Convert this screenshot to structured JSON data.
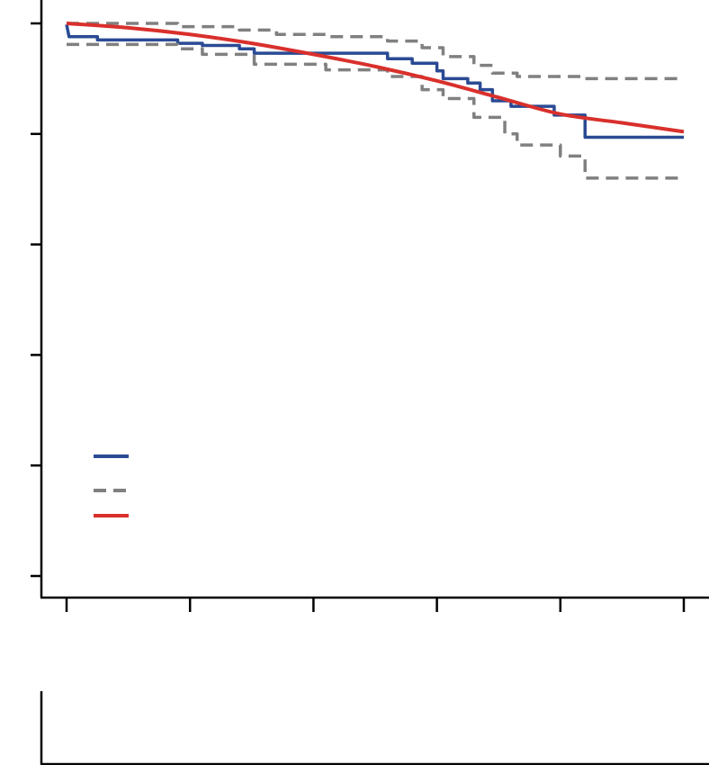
{
  "chart_data": [
    {
      "type": "line",
      "title": "",
      "xlabel": "",
      "ylabel": "",
      "xlim": [
        0,
        5
      ],
      "ylim": [
        0,
        5
      ],
      "x_ticks": [
        0,
        1,
        2,
        3,
        4,
        5
      ],
      "y_ticks": [
        0,
        1,
        2,
        3,
        4,
        5
      ],
      "grid": false,
      "legend": {
        "position": "lower-left",
        "entries": [
          {
            "series": 0,
            "label": ""
          },
          {
            "series": 1,
            "label": ""
          },
          {
            "series": 3,
            "label": ""
          }
        ]
      },
      "series": [
        {
          "style": "step",
          "color": "#2a4a94",
          "dash": "solid",
          "points": [
            [
              0.0,
              4.99
            ],
            [
              0.02,
              4.88
            ],
            [
              0.25,
              4.88
            ],
            [
              0.25,
              4.85
            ],
            [
              0.9,
              4.85
            ],
            [
              0.9,
              4.82
            ],
            [
              1.1,
              4.82
            ],
            [
              1.1,
              4.8
            ],
            [
              1.4,
              4.8
            ],
            [
              1.4,
              4.77
            ],
            [
              1.52,
              4.77
            ],
            [
              1.52,
              4.73
            ],
            [
              2.6,
              4.73
            ],
            [
              2.6,
              4.68
            ],
            [
              2.8,
              4.68
            ],
            [
              2.8,
              4.64
            ],
            [
              3.0,
              4.64
            ],
            [
              3.0,
              4.57
            ],
            [
              3.05,
              4.57
            ],
            [
              3.05,
              4.5
            ],
            [
              3.25,
              4.5
            ],
            [
              3.25,
              4.46
            ],
            [
              3.35,
              4.46
            ],
            [
              3.35,
              4.4
            ],
            [
              3.45,
              4.4
            ],
            [
              3.45,
              4.3
            ],
            [
              3.6,
              4.3
            ],
            [
              3.6,
              4.25
            ],
            [
              3.95,
              4.25
            ],
            [
              3.95,
              4.17
            ],
            [
              4.2,
              4.17
            ],
            [
              4.2,
              3.97
            ],
            [
              5.0,
              3.97
            ]
          ]
        },
        {
          "style": "step",
          "color": "#808080",
          "dash": "dashed",
          "points": [
            [
              0.0,
              5.0
            ],
            [
              0.9,
              5.0
            ],
            [
              0.9,
              4.97
            ],
            [
              1.4,
              4.97
            ],
            [
              1.4,
              4.94
            ],
            [
              1.7,
              4.94
            ],
            [
              1.7,
              4.9
            ],
            [
              2.1,
              4.9
            ],
            [
              2.1,
              4.88
            ],
            [
              2.6,
              4.88
            ],
            [
              2.6,
              4.84
            ],
            [
              2.88,
              4.84
            ],
            [
              2.88,
              4.78
            ],
            [
              3.05,
              4.78
            ],
            [
              3.05,
              4.7
            ],
            [
              3.3,
              4.7
            ],
            [
              3.3,
              4.62
            ],
            [
              3.45,
              4.62
            ],
            [
              3.45,
              4.55
            ],
            [
              3.65,
              4.55
            ],
            [
              3.65,
              4.52
            ],
            [
              4.2,
              4.52
            ],
            [
              4.2,
              4.5
            ],
            [
              4.95,
              4.5
            ]
          ]
        },
        {
          "style": "step",
          "color": "#808080",
          "dash": "dashed",
          "points": [
            [
              0.0,
              4.81
            ],
            [
              0.9,
              4.81
            ],
            [
              0.9,
              4.77
            ],
            [
              1.1,
              4.77
            ],
            [
              1.1,
              4.72
            ],
            [
              1.52,
              4.72
            ],
            [
              1.52,
              4.63
            ],
            [
              2.1,
              4.63
            ],
            [
              2.1,
              4.58
            ],
            [
              2.6,
              4.58
            ],
            [
              2.6,
              4.52
            ],
            [
              2.88,
              4.52
            ],
            [
              2.88,
              4.4
            ],
            [
              3.05,
              4.4
            ],
            [
              3.05,
              4.32
            ],
            [
              3.3,
              4.32
            ],
            [
              3.3,
              4.15
            ],
            [
              3.55,
              4.15
            ],
            [
              3.55,
              4.0
            ],
            [
              3.65,
              4.0
            ],
            [
              3.65,
              3.9
            ],
            [
              4.0,
              3.9
            ],
            [
              4.0,
              3.8
            ],
            [
              4.2,
              3.8
            ],
            [
              4.2,
              3.6
            ],
            [
              5.0,
              3.6
            ]
          ]
        },
        {
          "style": "smooth",
          "color": "#d9302c",
          "dash": "solid",
          "points": [
            [
              0.0,
              5.0
            ],
            [
              0.5,
              4.96
            ],
            [
              1.0,
              4.9
            ],
            [
              1.5,
              4.82
            ],
            [
              2.0,
              4.72
            ],
            [
              2.5,
              4.61
            ],
            [
              3.0,
              4.48
            ],
            [
              3.5,
              4.33
            ],
            [
              4.0,
              4.18
            ],
            [
              4.5,
              4.1
            ],
            [
              5.0,
              4.02
            ]
          ]
        }
      ]
    },
    {
      "type": "line",
      "title": "",
      "xlabel": "",
      "ylabel": "",
      "series": []
    }
  ]
}
